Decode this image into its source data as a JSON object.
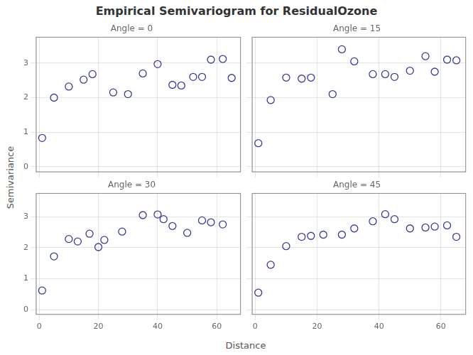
{
  "title": "Empirical Semivariogram for ResidualOzone",
  "xlabel": "Distance",
  "ylabel": "Semivariance",
  "chart_data": [
    {
      "type": "scatter",
      "title": "Angle = 0",
      "x": [
        1,
        5,
        10,
        15,
        18,
        25,
        30,
        35,
        40,
        45,
        48,
        52,
        55,
        58,
        62,
        65
      ],
      "values": [
        0.83,
        2.0,
        2.32,
        2.52,
        2.68,
        2.15,
        2.1,
        2.7,
        2.97,
        2.37,
        2.35,
        2.6,
        2.6,
        3.1,
        3.12,
        2.57
      ],
      "color": "#3a3a9a",
      "marker": "circle",
      "xlim": [
        -1,
        68
      ],
      "ylim": [
        -0.15,
        3.75
      ],
      "xticks": [
        0,
        20,
        40,
        60
      ],
      "yticks": [
        0,
        1,
        2,
        3
      ],
      "grid": true,
      "tick_labels": "y"
    },
    {
      "type": "scatter",
      "title": "Angle = 15",
      "x": [
        1,
        5,
        10,
        15,
        18,
        25,
        28,
        32,
        38,
        42,
        45,
        50,
        55,
        58,
        62,
        65
      ],
      "values": [
        0.68,
        1.93,
        2.58,
        2.55,
        2.58,
        2.1,
        3.4,
        3.05,
        2.68,
        2.68,
        2.6,
        2.78,
        3.2,
        2.75,
        3.1,
        3.08
      ],
      "color": "#3a3a9a",
      "marker": "circle",
      "xlim": [
        -1,
        68
      ],
      "ylim": [
        -0.15,
        3.75
      ],
      "xticks": [
        0,
        20,
        40,
        60
      ],
      "yticks": [
        0,
        1,
        2,
        3
      ],
      "grid": true,
      "tick_labels": false
    },
    {
      "type": "scatter",
      "title": "Angle = 30",
      "x": [
        1,
        5,
        10,
        13,
        17,
        20,
        22,
        28,
        35,
        40,
        42,
        45,
        50,
        55,
        58,
        62
      ],
      "values": [
        0.62,
        1.72,
        2.28,
        2.2,
        2.45,
        2.02,
        2.25,
        2.52,
        3.05,
        3.07,
        2.92,
        2.7,
        2.48,
        2.88,
        2.82,
        2.75
      ],
      "color": "#3a3a9a",
      "marker": "circle",
      "xlim": [
        -1,
        68
      ],
      "ylim": [
        -0.15,
        3.75
      ],
      "xticks": [
        0,
        20,
        40,
        60
      ],
      "yticks": [
        0,
        1,
        2,
        3
      ],
      "grid": true
    },
    {
      "type": "scatter",
      "title": "Angle = 45",
      "x": [
        1,
        5,
        10,
        15,
        18,
        22,
        28,
        32,
        38,
        42,
        45,
        50,
        55,
        58,
        62,
        65
      ],
      "values": [
        0.55,
        1.45,
        2.05,
        2.35,
        2.38,
        2.42,
        2.42,
        2.62,
        2.85,
        3.08,
        2.92,
        2.62,
        2.65,
        2.68,
        2.72,
        2.35
      ],
      "color": "#3a3a9a",
      "marker": "circle",
      "xlim": [
        -1,
        68
      ],
      "ylim": [
        -0.15,
        3.75
      ],
      "xticks": [
        0,
        20,
        40,
        60
      ],
      "yticks": [
        0,
        1,
        2,
        3
      ],
      "grid": true,
      "tick_labels": "x"
    }
  ]
}
